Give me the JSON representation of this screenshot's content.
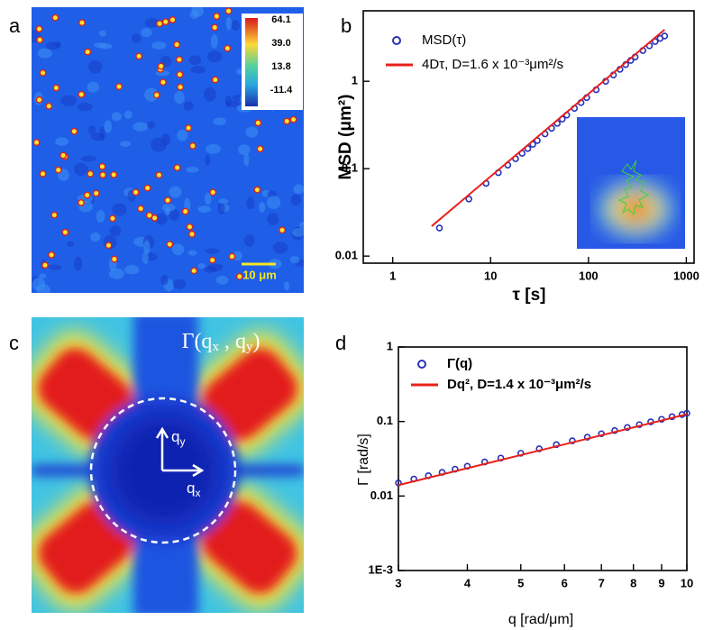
{
  "panel_labels": [
    "a",
    "b",
    "c",
    "d"
  ],
  "image_a": {
    "colorbar_ticks": [
      "64.1",
      "39.0",
      "13.8",
      "-11.4"
    ],
    "scale_bar": "10 μm"
  },
  "image_c": {
    "title": [
      "Γ(q",
      "x",
      " , q",
      "y",
      ")"
    ],
    "arrow_y": [
      "q",
      "y"
    ],
    "arrow_x": [
      "q",
      "x"
    ]
  },
  "chart_data": [
    {
      "type": "scatter",
      "log_x": true,
      "log_y": true,
      "legend": "upper left",
      "x_label": "τ [s]",
      "y_label": "MSD (μm²)",
      "xlim": [
        0.5,
        1200
      ],
      "ylim": [
        0.0083,
        6.4
      ],
      "xticks": [
        1,
        10,
        100,
        1000
      ],
      "yticks": [
        0.01,
        0.1,
        1
      ],
      "series": [
        {
          "name": "MSD(τ)",
          "color": "#2732b8",
          "marker": "circle",
          "x": [
            3,
            6,
            9,
            12,
            15,
            18,
            21,
            24,
            27,
            30,
            36,
            42,
            48,
            54,
            60,
            72,
            84,
            96,
            120,
            150,
            180,
            210,
            240,
            270,
            300,
            360,
            420,
            480,
            540,
            600
          ],
          "values": [
            0.021,
            0.045,
            0.068,
            0.09,
            0.11,
            0.13,
            0.15,
            0.17,
            0.19,
            0.21,
            0.25,
            0.29,
            0.33,
            0.37,
            0.41,
            0.49,
            0.57,
            0.65,
            0.8,
            1.0,
            1.18,
            1.37,
            1.55,
            1.73,
            1.9,
            2.25,
            2.55,
            2.85,
            3.1,
            3.3
          ]
        },
        {
          "name": "4Dτ, D=1.6 x 10⁻³μm²/s",
          "color": "#e8201c",
          "marker": "none",
          "x": [
            2.5,
            600
          ],
          "values": [
            0.022,
            3.9
          ]
        }
      ]
    },
    {
      "type": "scatter",
      "log_x": true,
      "log_y": true,
      "legend": "upper left",
      "x_label": "q [rad/μm]",
      "y_label": "Γ [rad/s]",
      "xlim": [
        3,
        10
      ],
      "ylim": [
        0.001,
        1
      ],
      "xticks": [
        3,
        4,
        5,
        6,
        7,
        8,
        9,
        10
      ],
      "yticks": [
        {
          "value": 0.001,
          "label": "1E-3"
        },
        0.01,
        0.1,
        1
      ],
      "series": [
        {
          "name": "Γ(q)",
          "color": "#2732b8",
          "marker": "circle",
          "x": [
            3.0,
            3.2,
            3.4,
            3.6,
            3.8,
            4.0,
            4.3,
            4.6,
            5.0,
            5.4,
            5.8,
            6.2,
            6.6,
            7.0,
            7.4,
            7.8,
            8.2,
            8.6,
            9.0,
            9.4,
            9.8,
            10
          ],
          "values": [
            0.015,
            0.0169,
            0.0187,
            0.0208,
            0.0229,
            0.0251,
            0.0286,
            0.0323,
            0.0375,
            0.043,
            0.0489,
            0.0551,
            0.0616,
            0.0685,
            0.0757,
            0.0831,
            0.0908,
            0.0988,
            0.107,
            0.116,
            0.124,
            0.129
          ]
        },
        {
          "name": "Dq², D=1.4 x 10⁻³μm²/s",
          "color": "#e8201c",
          "marker": "none",
          "x": [
            3,
            10
          ],
          "values": [
            0.014,
            0.125
          ]
        }
      ]
    }
  ]
}
